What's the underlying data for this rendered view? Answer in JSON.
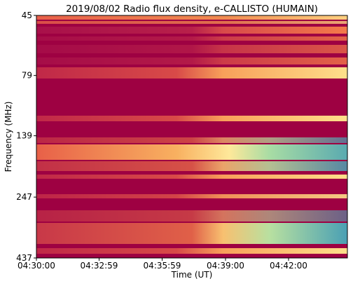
{
  "chart_data": {
    "type": "spectrogram",
    "title": "2019/08/02  Radio flux density, e-CALLISTO (HUMAIN)",
    "x_label": "Time (UT)",
    "y_label": "Frequency (MHz)",
    "xlim": [
      16200,
      17088
    ],
    "xticks": [
      {
        "value": 16200,
        "label": "04:30:00"
      },
      {
        "value": 16379,
        "label": "04:32:59"
      },
      {
        "value": 16559,
        "label": "04:35:59"
      },
      {
        "value": 16740,
        "label": "04:39:00"
      },
      {
        "value": 16920,
        "label": "04:42:00"
      }
    ],
    "ylim": [
      437,
      45
    ],
    "yscale": "log",
    "yticks": [
      45,
      79,
      139,
      247,
      437
    ]
  }
}
